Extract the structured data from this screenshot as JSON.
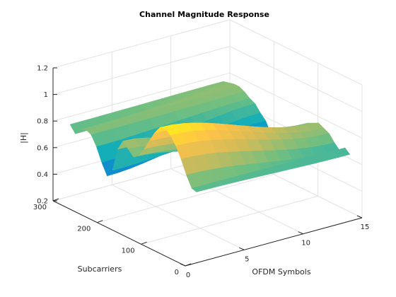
{
  "chart_data": {
    "type": "surface",
    "title": "Channel Magnitude Response",
    "xlabel": "OFDM Symbols",
    "ylabel": "Subcarriers",
    "zlabel": "|H|",
    "xlim": [
      0,
      15
    ],
    "ylim": [
      0,
      300
    ],
    "zlim": [
      0.2,
      1.2
    ],
    "x_ticks": [
      "0",
      "5",
      "10",
      "15"
    ],
    "y_ticks": [
      "0",
      "100",
      "200",
      "300"
    ],
    "z_ticks": [
      "0.2",
      "0.4",
      "0.6",
      "0.8",
      "1",
      "1.2"
    ],
    "grid": true,
    "colormap": "parula",
    "symbols": [
      1,
      14
    ],
    "subcarriers": [
      1,
      12,
      24,
      36,
      48,
      60,
      72,
      84,
      96,
      108,
      120,
      132,
      144,
      156,
      168,
      180,
      192,
      204,
      216,
      228,
      240,
      252,
      264,
      276,
      288
    ],
    "magnitude_start": [
      0.73,
      0.74,
      0.82,
      0.92,
      1.0,
      1.06,
      1.09,
      1.08,
      1.02,
      0.94,
      0.86,
      0.79,
      0.76,
      0.8,
      0.84,
      0.76,
      0.58,
      0.52,
      0.6,
      0.7,
      0.77,
      0.79,
      0.77,
      0.72,
      0.77
    ],
    "magnitude_end": [
      0.7,
      0.73,
      0.69,
      0.73,
      0.78,
      0.8,
      0.82,
      0.8,
      0.78,
      0.73,
      0.67,
      0.6,
      0.52,
      0.44,
      0.48,
      0.56,
      0.64,
      0.68,
      0.73,
      0.75,
      0.78,
      0.8,
      0.8,
      0.79,
      0.78
    ]
  }
}
